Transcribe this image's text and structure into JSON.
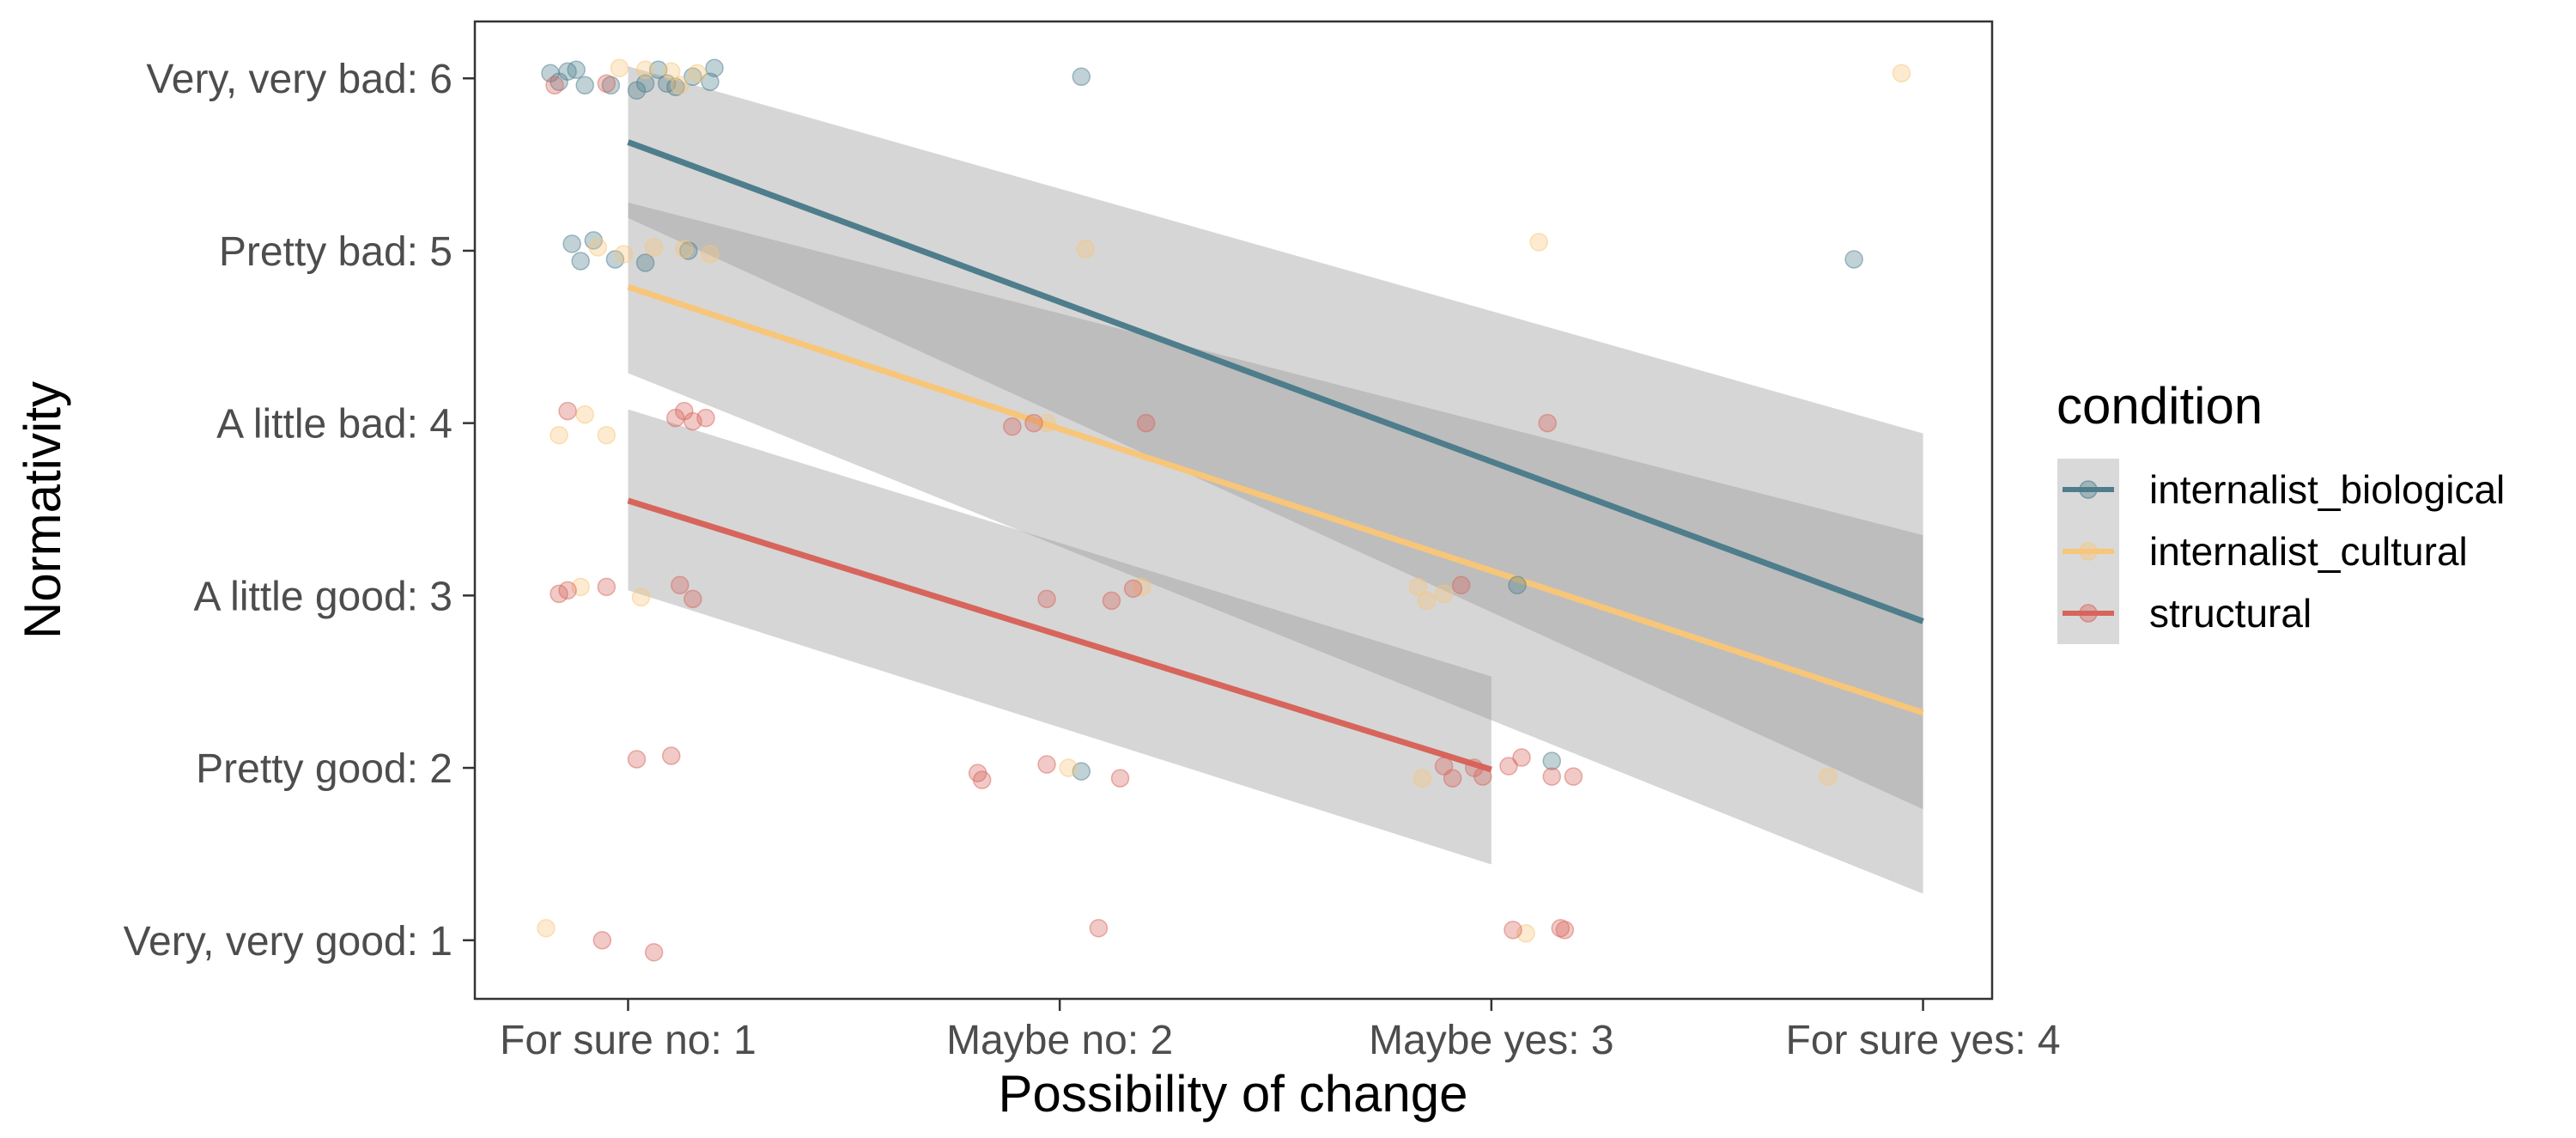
{
  "chart_data": {
    "type": "scatter",
    "xlabel": "Possibility of change",
    "ylabel": "Normativity",
    "x_ticks": [
      {
        "value": 1,
        "label": "For sure no: 1"
      },
      {
        "value": 2,
        "label": "Maybe no: 2"
      },
      {
        "value": 3,
        "label": "Maybe yes: 3"
      },
      {
        "value": 4,
        "label": "For sure yes: 4"
      }
    ],
    "y_ticks": [
      {
        "value": 1,
        "label": "Very, very good: 1"
      },
      {
        "value": 2,
        "label": "Pretty good: 2"
      },
      {
        "value": 3,
        "label": "A little good: 3"
      },
      {
        "value": 4,
        "label": "A little bad: 4"
      },
      {
        "value": 5,
        "label": "Pretty bad: 5"
      },
      {
        "value": 6,
        "label": "Very, very bad: 6"
      }
    ],
    "xlim": [
      0.645,
      4.16
    ],
    "ylim": [
      0.66,
      6.33
    ],
    "grid": false,
    "legend": {
      "title": "condition",
      "position": "right",
      "entries": [
        "internalist_biological",
        "internalist_cultural",
        "structural"
      ]
    },
    "series": [
      {
        "name": "internalist_biological",
        "color": "#4e7d8c",
        "fit": {
          "x": [
            1,
            4
          ],
          "y": [
            5.63,
            2.85
          ],
          "ci_lower": [
            5.19,
            1.76
          ],
          "ci_upper": [
            6.07,
            3.94
          ]
        },
        "points": [
          {
            "x": 0.82,
            "y": 6.03
          },
          {
            "x": 0.86,
            "y": 6.04
          },
          {
            "x": 0.88,
            "y": 6.05
          },
          {
            "x": 0.84,
            "y": 5.98
          },
          {
            "x": 0.9,
            "y": 5.96
          },
          {
            "x": 0.96,
            "y": 5.96
          },
          {
            "x": 1.02,
            "y": 5.93
          },
          {
            "x": 1.04,
            "y": 5.97
          },
          {
            "x": 1.07,
            "y": 6.05
          },
          {
            "x": 1.09,
            "y": 5.97
          },
          {
            "x": 1.11,
            "y": 5.95
          },
          {
            "x": 1.15,
            "y": 6.01
          },
          {
            "x": 1.19,
            "y": 5.98
          },
          {
            "x": 1.2,
            "y": 6.06
          },
          {
            "x": 2.05,
            "y": 6.01
          },
          {
            "x": 0.87,
            "y": 5.04
          },
          {
            "x": 0.89,
            "y": 4.94
          },
          {
            "x": 0.92,
            "y": 5.06
          },
          {
            "x": 0.97,
            "y": 4.95
          },
          {
            "x": 1.04,
            "y": 4.93
          },
          {
            "x": 1.14,
            "y": 5.0
          },
          {
            "x": 3.84,
            "y": 4.95
          },
          {
            "x": 3.06,
            "y": 3.06
          },
          {
            "x": 2.05,
            "y": 1.98
          },
          {
            "x": 3.14,
            "y": 2.04
          }
        ]
      },
      {
        "name": "internalist_cultural",
        "color": "#f7c679",
        "fit": {
          "x": [
            1,
            4
          ],
          "y": [
            4.79,
            2.32
          ],
          "ci_lower": [
            4.29,
            1.27
          ],
          "ci_upper": [
            5.28,
            3.35
          ]
        },
        "points": [
          {
            "x": 0.98,
            "y": 6.06
          },
          {
            "x": 1.04,
            "y": 6.05
          },
          {
            "x": 1.1,
            "y": 6.04
          },
          {
            "x": 1.12,
            "y": 5.96
          },
          {
            "x": 1.16,
            "y": 6.03
          },
          {
            "x": 3.95,
            "y": 6.03
          },
          {
            "x": 0.93,
            "y": 5.02
          },
          {
            "x": 0.99,
            "y": 4.98
          },
          {
            "x": 1.06,
            "y": 5.02
          },
          {
            "x": 1.13,
            "y": 5.01
          },
          {
            "x": 1.19,
            "y": 4.98
          },
          {
            "x": 2.06,
            "y": 5.01
          },
          {
            "x": 3.11,
            "y": 5.05
          },
          {
            "x": 0.84,
            "y": 3.93
          },
          {
            "x": 0.9,
            "y": 4.05
          },
          {
            "x": 0.95,
            "y": 3.93
          },
          {
            "x": 1.97,
            "y": 4.0
          },
          {
            "x": 0.89,
            "y": 3.05
          },
          {
            "x": 1.03,
            "y": 2.99
          },
          {
            "x": 2.19,
            "y": 3.05
          },
          {
            "x": 2.83,
            "y": 3.05
          },
          {
            "x": 2.85,
            "y": 2.97
          },
          {
            "x": 2.89,
            "y": 3.01
          },
          {
            "x": 2.02,
            "y": 2.0
          },
          {
            "x": 2.84,
            "y": 1.94
          },
          {
            "x": 3.78,
            "y": 1.95
          },
          {
            "x": 0.81,
            "y": 1.07
          },
          {
            "x": 3.08,
            "y": 1.04
          }
        ]
      },
      {
        "name": "structural",
        "color": "#d7655c",
        "fit": {
          "x": [
            1,
            3
          ],
          "y": [
            3.55,
            1.99
          ],
          "ci_lower": [
            3.03,
            1.44
          ],
          "ci_upper": [
            4.08,
            2.53
          ]
        },
        "points": [
          {
            "x": 0.83,
            "y": 5.96
          },
          {
            "x": 0.95,
            "y": 5.97
          },
          {
            "x": 0.86,
            "y": 4.07
          },
          {
            "x": 1.11,
            "y": 4.03
          },
          {
            "x": 1.13,
            "y": 4.07
          },
          {
            "x": 1.15,
            "y": 4.01
          },
          {
            "x": 1.18,
            "y": 4.03
          },
          {
            "x": 1.89,
            "y": 3.98
          },
          {
            "x": 1.94,
            "y": 4.0
          },
          {
            "x": 2.2,
            "y": 4.0
          },
          {
            "x": 3.13,
            "y": 4.0
          },
          {
            "x": 0.84,
            "y": 3.01
          },
          {
            "x": 0.86,
            "y": 3.03
          },
          {
            "x": 0.95,
            "y": 3.05
          },
          {
            "x": 1.12,
            "y": 3.06
          },
          {
            "x": 1.15,
            "y": 2.98
          },
          {
            "x": 1.97,
            "y": 2.98
          },
          {
            "x": 2.12,
            "y": 2.97
          },
          {
            "x": 2.17,
            "y": 3.04
          },
          {
            "x": 2.93,
            "y": 3.06
          },
          {
            "x": 1.02,
            "y": 2.05
          },
          {
            "x": 1.1,
            "y": 2.07
          },
          {
            "x": 1.81,
            "y": 1.97
          },
          {
            "x": 1.82,
            "y": 1.93
          },
          {
            "x": 1.97,
            "y": 2.02
          },
          {
            "x": 2.14,
            "y": 1.94
          },
          {
            "x": 2.89,
            "y": 2.01
          },
          {
            "x": 2.91,
            "y": 1.94
          },
          {
            "x": 2.96,
            "y": 2.0
          },
          {
            "x": 2.98,
            "y": 1.95
          },
          {
            "x": 3.04,
            "y": 2.01
          },
          {
            "x": 3.07,
            "y": 2.06
          },
          {
            "x": 3.14,
            "y": 1.95
          },
          {
            "x": 3.19,
            "y": 1.95
          },
          {
            "x": 0.94,
            "y": 1.0
          },
          {
            "x": 1.06,
            "y": 0.93
          },
          {
            "x": 2.09,
            "y": 1.07
          },
          {
            "x": 3.05,
            "y": 1.06
          },
          {
            "x": 3.16,
            "y": 1.07
          },
          {
            "x": 3.17,
            "y": 1.06
          }
        ]
      }
    ]
  }
}
